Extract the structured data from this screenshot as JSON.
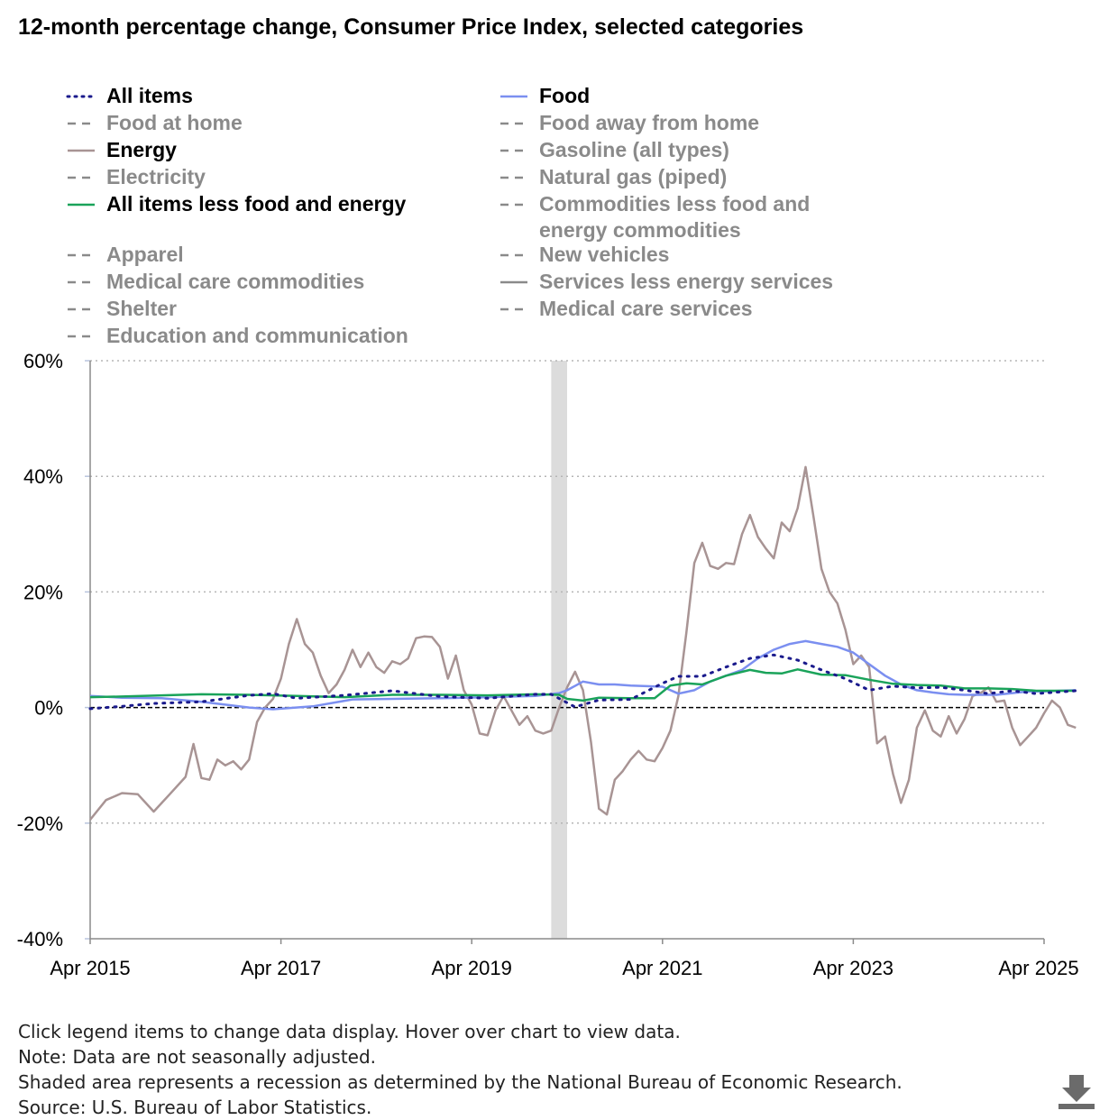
{
  "title": "12-month percentage change, Consumer Price Index, selected categories",
  "legend": [
    {
      "label": "All items",
      "active": true,
      "style": "dotted",
      "color": "#1a1a8c"
    },
    {
      "label": "Food",
      "active": true,
      "style": "solid",
      "color": "#7b8ff0"
    },
    {
      "label": "Food at home",
      "active": false,
      "style": "dashed",
      "color": "#8a8a8a"
    },
    {
      "label": "Food away from home",
      "active": false,
      "style": "dashed",
      "color": "#8a8a8a"
    },
    {
      "label": "Energy",
      "active": true,
      "style": "solid",
      "color": "#a89494"
    },
    {
      "label": "Gasoline (all types)",
      "active": false,
      "style": "dashed",
      "color": "#8a8a8a"
    },
    {
      "label": "Electricity",
      "active": false,
      "style": "dashed",
      "color": "#8a8a8a"
    },
    {
      "label": "Natural gas (piped)",
      "active": false,
      "style": "dashed",
      "color": "#8a8a8a"
    },
    {
      "label": "All items less food and energy",
      "active": true,
      "style": "solid",
      "color": "#1aa35a"
    },
    {
      "label": "Commodities less food and energy commodities",
      "active": false,
      "style": "dashed",
      "color": "#8a8a8a"
    },
    {
      "label": "Apparel",
      "active": false,
      "style": "dashed",
      "color": "#8a8a8a"
    },
    {
      "label": "New vehicles",
      "active": false,
      "style": "dashed",
      "color": "#8a8a8a"
    },
    {
      "label": "Medical care commodities",
      "active": false,
      "style": "dashed",
      "color": "#8a8a8a"
    },
    {
      "label": "Services less energy services",
      "active": false,
      "style": "solid",
      "color": "#8a8a8a"
    },
    {
      "label": "Shelter",
      "active": false,
      "style": "dashed",
      "color": "#8a8a8a"
    },
    {
      "label": "Medical care services",
      "active": false,
      "style": "dashed",
      "color": "#8a8a8a"
    },
    {
      "label": "Education and communication",
      "active": false,
      "style": "dashed",
      "color": "#8a8a8a"
    }
  ],
  "notes": [
    "Click legend items to change data display. Hover over chart to view data.",
    "Note: Data are not seasonally adjusted.",
    "Shaded area represents a recession as determined by the National Bureau of Economic Research.",
    "Source: U.S. Bureau of Labor Statistics."
  ],
  "chart_data": {
    "type": "line",
    "title": "12-month percentage change, Consumer Price Index, selected categories",
    "xlabel": "",
    "ylabel": "",
    "x_ticks": [
      "Apr 2015",
      "Apr 2017",
      "Apr 2019",
      "Apr 2021",
      "Apr 2023",
      "Apr 2025"
    ],
    "y_ticks": [
      "60%",
      "40%",
      "20%",
      "0%",
      "-20%",
      "-40%"
    ],
    "y_tick_values": [
      60,
      40,
      20,
      0,
      -20,
      -40
    ],
    "ylim": [
      -40,
      60
    ],
    "xlim": [
      "2015-04",
      "2025-04"
    ],
    "grid": "horizontal dotted",
    "zero_line": "dashed",
    "recession": {
      "start": "2020-02",
      "end": "2020-04",
      "color": "#dcdcdc"
    },
    "series": [
      {
        "name": "Energy",
        "color": "#a89494",
        "points": [
          [
            "2015-04",
            -19.4
          ],
          [
            "2015-06",
            -16.0
          ],
          [
            "2015-08",
            -14.8
          ],
          [
            "2015-10",
            -15.0
          ],
          [
            "2015-12",
            -18.0
          ],
          [
            "2016-02",
            -15.0
          ],
          [
            "2016-04",
            -12.0
          ],
          [
            "2016-05",
            -6.3
          ],
          [
            "2016-06",
            -12.2
          ],
          [
            "2016-07",
            -12.5
          ],
          [
            "2016-08",
            -9.0
          ],
          [
            "2016-09",
            -10.0
          ],
          [
            "2016-10",
            -9.3
          ],
          [
            "2016-11",
            -10.7
          ],
          [
            "2016-12",
            -9.0
          ],
          [
            "2017-01",
            -2.5
          ],
          [
            "2017-02",
            0.0
          ],
          [
            "2017-03",
            1.5
          ],
          [
            "2017-04",
            5.0
          ],
          [
            "2017-05",
            11.0
          ],
          [
            "2017-06",
            15.3
          ],
          [
            "2017-07",
            11.0
          ],
          [
            "2017-08",
            9.5
          ],
          [
            "2017-09",
            5.5
          ],
          [
            "2017-10",
            2.5
          ],
          [
            "2017-11",
            4.0
          ],
          [
            "2017-12",
            6.5
          ],
          [
            "2018-01",
            10.0
          ],
          [
            "2018-02",
            7.0
          ],
          [
            "2018-03",
            9.5
          ],
          [
            "2018-04",
            7.0
          ],
          [
            "2018-05",
            6.0
          ],
          [
            "2018-06",
            8.0
          ],
          [
            "2018-07",
            7.5
          ],
          [
            "2018-08",
            8.5
          ],
          [
            "2018-09",
            12.0
          ],
          [
            "2018-10",
            12.3
          ],
          [
            "2018-11",
            12.2
          ],
          [
            "2018-12",
            10.5
          ],
          [
            "2019-01",
            5.0
          ],
          [
            "2019-02",
            9.0
          ],
          [
            "2019-03",
            3.0
          ],
          [
            "2019-04",
            0.5
          ],
          [
            "2019-05",
            -4.5
          ],
          [
            "2019-06",
            -4.8
          ],
          [
            "2019-07",
            -0.5
          ],
          [
            "2019-08",
            2.0
          ],
          [
            "2019-09",
            -0.5
          ],
          [
            "2019-10",
            -3.0
          ],
          [
            "2019-11",
            -1.5
          ],
          [
            "2019-12",
            -4.0
          ],
          [
            "2020-01",
            -4.5
          ],
          [
            "2020-02",
            -4.0
          ],
          [
            "2020-03",
            0.0
          ],
          [
            "2020-04",
            3.5
          ],
          [
            "2020-05",
            6.2
          ],
          [
            "2020-06",
            3.0
          ],
          [
            "2020-07",
            -6.0
          ],
          [
            "2020-08",
            -17.5
          ],
          [
            "2020-09",
            -18.5
          ],
          [
            "2020-10",
            -12.5
          ],
          [
            "2020-11",
            -11.0
          ],
          [
            "2020-12",
            -9.0
          ],
          [
            "2021-01",
            -7.5
          ],
          [
            "2021-02",
            -9.0
          ],
          [
            "2021-03",
            -9.3
          ],
          [
            "2021-04",
            -7.0
          ],
          [
            "2021-05",
            -4.0
          ],
          [
            "2021-06",
            2.0
          ],
          [
            "2021-07",
            13.0
          ],
          [
            "2021-08",
            25.0
          ],
          [
            "2021-09",
            28.5
          ],
          [
            "2021-10",
            24.5
          ],
          [
            "2021-11",
            24.0
          ],
          [
            "2021-12",
            25.0
          ],
          [
            "2022-01",
            24.8
          ],
          [
            "2022-02",
            30.0
          ],
          [
            "2022-03",
            33.3
          ],
          [
            "2022-04",
            29.5
          ],
          [
            "2022-05",
            27.5
          ],
          [
            "2022-06",
            25.8
          ],
          [
            "2022-07",
            32.0
          ],
          [
            "2022-08",
            30.5
          ],
          [
            "2022-09",
            34.5
          ],
          [
            "2022-10",
            41.6
          ],
          [
            "2022-11",
            33.0
          ],
          [
            "2022-12",
            24.0
          ],
          [
            "2023-01",
            20.0
          ],
          [
            "2023-02",
            18.0
          ],
          [
            "2023-03",
            13.5
          ],
          [
            "2023-04",
            7.5
          ],
          [
            "2023-05",
            9.0
          ],
          [
            "2023-06",
            7.0
          ],
          [
            "2023-07",
            -6.2
          ],
          [
            "2023-08",
            -5.0
          ],
          [
            "2023-09",
            -11.5
          ],
          [
            "2023-10",
            -16.5
          ],
          [
            "2023-11",
            -12.5
          ],
          [
            "2023-12",
            -3.5
          ],
          [
            "2024-01",
            -0.5
          ],
          [
            "2024-02",
            -4.0
          ],
          [
            "2024-03",
            -5.0
          ],
          [
            "2024-04",
            -1.5
          ],
          [
            "2024-05",
            -4.5
          ],
          [
            "2024-06",
            -2.0
          ],
          [
            "2024-07",
            2.0
          ],
          [
            "2024-08",
            2.5
          ],
          [
            "2024-09",
            3.5
          ],
          [
            "2024-10",
            1.0
          ],
          [
            "2024-11",
            1.2
          ],
          [
            "2024-12",
            -3.5
          ],
          [
            "2025-01",
            -6.5
          ],
          [
            "2025-02",
            -5.0
          ],
          [
            "2025-03",
            -3.5
          ],
          [
            "2025-04",
            -1.0
          ],
          [
            "2025-05",
            1.2
          ],
          [
            "2025-06",
            0.0
          ],
          [
            "2025-07",
            -3.0
          ],
          [
            "2025-08",
            -3.5
          ]
        ]
      },
      {
        "name": "Food",
        "color": "#7b8ff0",
        "points": [
          [
            "2015-04",
            2.0
          ],
          [
            "2015-08",
            1.7
          ],
          [
            "2016-01",
            1.6
          ],
          [
            "2016-06",
            1.0
          ],
          [
            "2016-12",
            0.0
          ],
          [
            "2017-03",
            -0.3
          ],
          [
            "2017-08",
            0.2
          ],
          [
            "2018-01",
            1.4
          ],
          [
            "2018-06",
            1.5
          ],
          [
            "2018-12",
            1.6
          ],
          [
            "2019-06",
            1.8
          ],
          [
            "2019-12",
            2.0
          ],
          [
            "2020-03",
            2.5
          ],
          [
            "2020-04",
            3.0
          ],
          [
            "2020-06",
            4.5
          ],
          [
            "2020-08",
            4.0
          ],
          [
            "2020-10",
            4.0
          ],
          [
            "2020-12",
            3.8
          ],
          [
            "2021-02",
            3.7
          ],
          [
            "2021-04",
            3.6
          ],
          [
            "2021-06",
            2.4
          ],
          [
            "2021-08",
            3.0
          ],
          [
            "2021-10",
            4.5
          ],
          [
            "2021-12",
            5.5
          ],
          [
            "2022-02",
            6.5
          ],
          [
            "2022-04",
            8.5
          ],
          [
            "2022-06",
            10.0
          ],
          [
            "2022-08",
            11.0
          ],
          [
            "2022-10",
            11.5
          ],
          [
            "2022-12",
            11.0
          ],
          [
            "2023-02",
            10.5
          ],
          [
            "2023-04",
            9.5
          ],
          [
            "2023-06",
            7.5
          ],
          [
            "2023-08",
            5.5
          ],
          [
            "2023-10",
            4.0
          ],
          [
            "2023-12",
            3.0
          ],
          [
            "2024-02",
            2.6
          ],
          [
            "2024-04",
            2.3
          ],
          [
            "2024-06",
            2.2
          ],
          [
            "2024-08",
            2.2
          ],
          [
            "2024-10",
            2.2
          ],
          [
            "2024-12",
            2.5
          ],
          [
            "2025-02",
            2.8
          ],
          [
            "2025-04",
            2.8
          ],
          [
            "2025-06",
            2.9
          ],
          [
            "2025-08",
            3.0
          ]
        ]
      },
      {
        "name": "All items less food and energy",
        "color": "#1aa35a",
        "points": [
          [
            "2015-04",
            1.8
          ],
          [
            "2015-08",
            1.9
          ],
          [
            "2016-01",
            2.1
          ],
          [
            "2016-06",
            2.3
          ],
          [
            "2016-12",
            2.2
          ],
          [
            "2017-06",
            2.0
          ],
          [
            "2017-12",
            1.8
          ],
          [
            "2018-06",
            2.2
          ],
          [
            "2018-12",
            2.2
          ],
          [
            "2019-06",
            2.1
          ],
          [
            "2019-12",
            2.3
          ],
          [
            "2020-03",
            2.2
          ],
          [
            "2020-04",
            1.5
          ],
          [
            "2020-06",
            1.2
          ],
          [
            "2020-08",
            1.7
          ],
          [
            "2020-12",
            1.6
          ],
          [
            "2021-03",
            1.6
          ],
          [
            "2021-05",
            3.8
          ],
          [
            "2021-07",
            4.2
          ],
          [
            "2021-09",
            4.0
          ],
          [
            "2021-12",
            5.5
          ],
          [
            "2022-03",
            6.5
          ],
          [
            "2022-05",
            6.0
          ],
          [
            "2022-07",
            5.9
          ],
          [
            "2022-09",
            6.6
          ],
          [
            "2022-12",
            5.7
          ],
          [
            "2023-03",
            5.6
          ],
          [
            "2023-06",
            4.8
          ],
          [
            "2023-09",
            4.1
          ],
          [
            "2023-12",
            3.9
          ],
          [
            "2024-03",
            3.8
          ],
          [
            "2024-06",
            3.3
          ],
          [
            "2024-09",
            3.3
          ],
          [
            "2024-12",
            3.2
          ],
          [
            "2025-03",
            2.9
          ],
          [
            "2025-08",
            2.9
          ]
        ]
      },
      {
        "name": "All items",
        "color": "#1a1a8c",
        "points": [
          [
            "2015-04",
            -0.2
          ],
          [
            "2015-08",
            0.2
          ],
          [
            "2015-12",
            0.7
          ],
          [
            "2016-06",
            1.0
          ],
          [
            "2016-12",
            2.1
          ],
          [
            "2017-03",
            2.4
          ],
          [
            "2017-06",
            1.6
          ],
          [
            "2017-12",
            2.1
          ],
          [
            "2018-06",
            2.9
          ],
          [
            "2018-12",
            1.9
          ],
          [
            "2019-06",
            1.6
          ],
          [
            "2019-12",
            2.3
          ],
          [
            "2020-02",
            2.3
          ],
          [
            "2020-05",
            0.1
          ],
          [
            "2020-08",
            1.3
          ],
          [
            "2020-12",
            1.4
          ],
          [
            "2021-04",
            4.2
          ],
          [
            "2021-06",
            5.4
          ],
          [
            "2021-09",
            5.4
          ],
          [
            "2021-12",
            7.0
          ],
          [
            "2022-03",
            8.5
          ],
          [
            "2022-06",
            9.1
          ],
          [
            "2022-09",
            8.2
          ],
          [
            "2022-12",
            6.5
          ],
          [
            "2023-03",
            5.0
          ],
          [
            "2023-06",
            3.0
          ],
          [
            "2023-09",
            3.7
          ],
          [
            "2023-12",
            3.4
          ],
          [
            "2024-03",
            3.5
          ],
          [
            "2024-06",
            3.0
          ],
          [
            "2024-09",
            2.4
          ],
          [
            "2024-12",
            2.9
          ],
          [
            "2025-03",
            2.4
          ],
          [
            "2025-06",
            2.7
          ],
          [
            "2025-08",
            2.9
          ]
        ]
      }
    ]
  }
}
